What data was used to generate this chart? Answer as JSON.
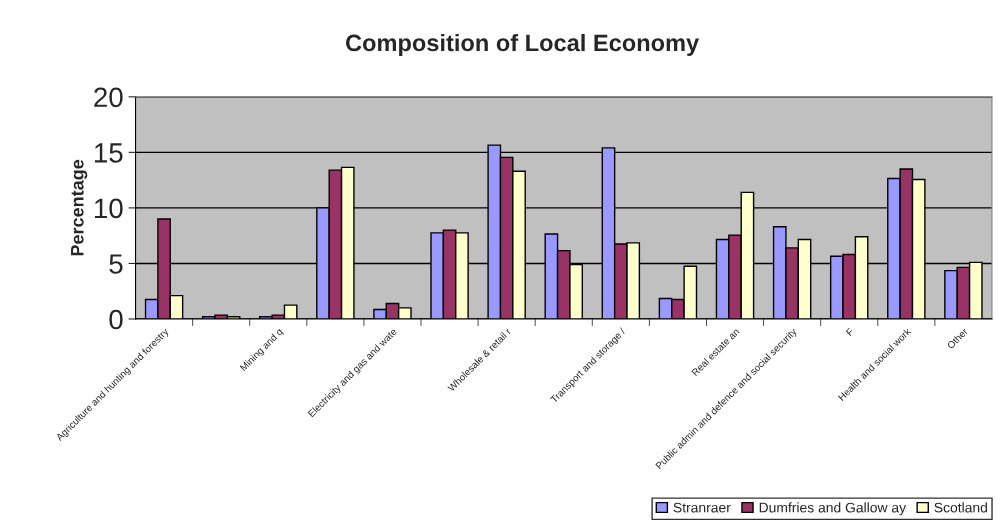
{
  "chart_data": {
    "type": "bar",
    "title": "Composition of Local Economy",
    "ylabel": "Percentage",
    "categories": [
      "Agriculture and hunting and forestry",
      null,
      "Mining and q",
      null,
      "Electricity and gas and wate",
      null,
      "Wholesale & retail r",
      null,
      "Transport and storage /",
      null,
      "Real estate an",
      "Public admin and defence and social security",
      "F",
      "Health and social work",
      "Other"
    ],
    "series": [
      {
        "name": "Stranraer",
        "color": "#9999ff",
        "values": [
          1.75,
          0.2,
          0.2,
          10.0,
          0.85,
          7.75,
          15.65,
          7.65,
          15.4,
          1.85,
          7.15,
          8.3,
          5.65,
          12.65,
          4.35
        ]
      },
      {
        "name": "Dumfries and Gallow ay",
        "color": "#993366",
        "values": [
          9.0,
          0.35,
          0.35,
          13.4,
          1.4,
          8.0,
          14.55,
          6.15,
          6.75,
          1.75,
          7.55,
          6.4,
          5.8,
          13.5,
          4.65
        ]
      },
      {
        "name": "Scotland",
        "color": "#ffffcc",
        "values": [
          2.1,
          0.2,
          1.25,
          13.65,
          1.0,
          7.75,
          13.3,
          4.9,
          6.85,
          4.75,
          11.4,
          7.15,
          7.4,
          12.55,
          5.1
        ]
      }
    ],
    "ylim": [
      0,
      20
    ],
    "yticks": [
      0,
      5,
      10,
      15,
      20
    ],
    "grid": "y",
    "legend": "bottom right"
  }
}
